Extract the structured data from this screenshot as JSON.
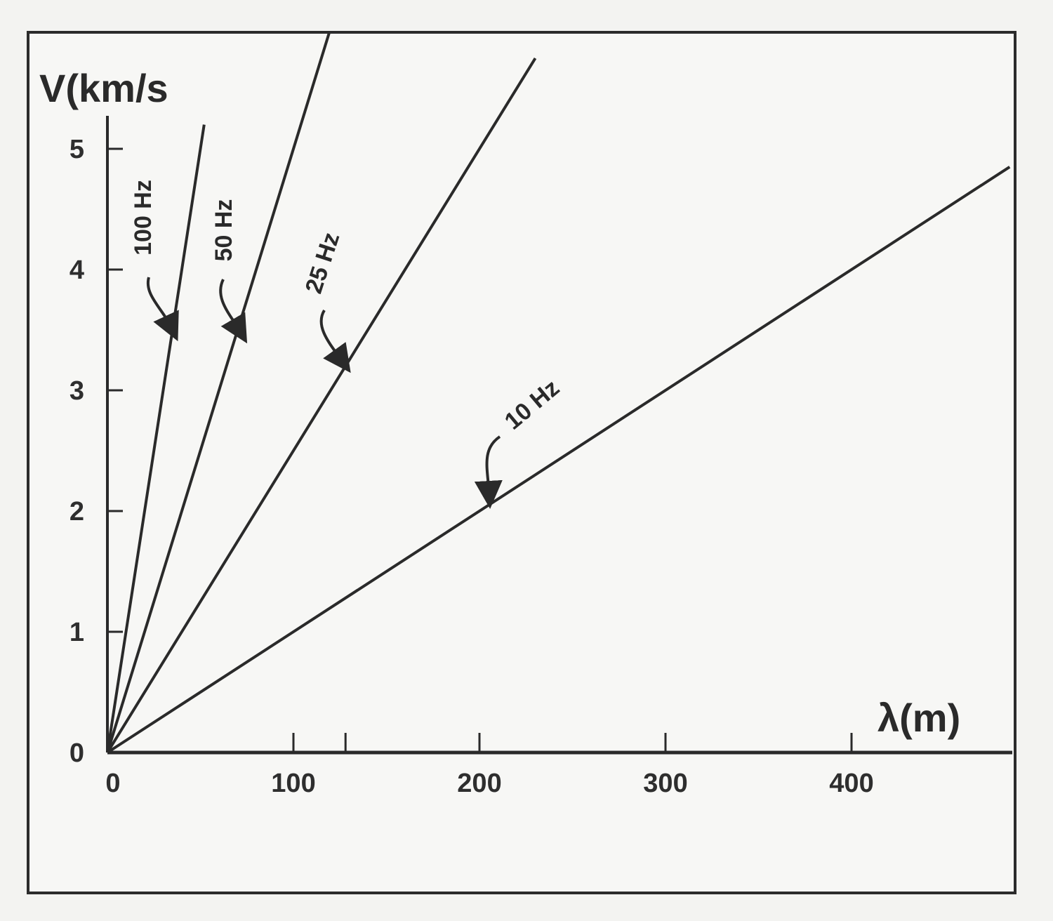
{
  "chart_data": {
    "type": "line",
    "xlabel": "λ(m)",
    "ylabel": "V(km/s",
    "xlim": [
      0,
      485
    ],
    "ylim": [
      0,
      5.2
    ],
    "xticks": [
      0,
      100,
      200,
      300,
      400
    ],
    "yticks": [
      0,
      1,
      2,
      3,
      4,
      5
    ],
    "x_extra_minor_tick": 128,
    "grid": false,
    "series": [
      {
        "name": "100 Hz",
        "frequency_hz": 100,
        "x": [
          0,
          52
        ],
        "y": [
          0,
          5.2
        ]
      },
      {
        "name": "50 Hz",
        "frequency_hz": 50,
        "x": [
          0,
          122
        ],
        "y": [
          0,
          6.1
        ]
      },
      {
        "name": "25 Hz",
        "frequency_hz": 25,
        "x": [
          0,
          230
        ],
        "y": [
          0,
          5.75
        ]
      },
      {
        "name": "10 Hz",
        "frequency_hz": 10,
        "x": [
          0,
          485
        ],
        "y": [
          0,
          4.85
        ]
      }
    ]
  }
}
